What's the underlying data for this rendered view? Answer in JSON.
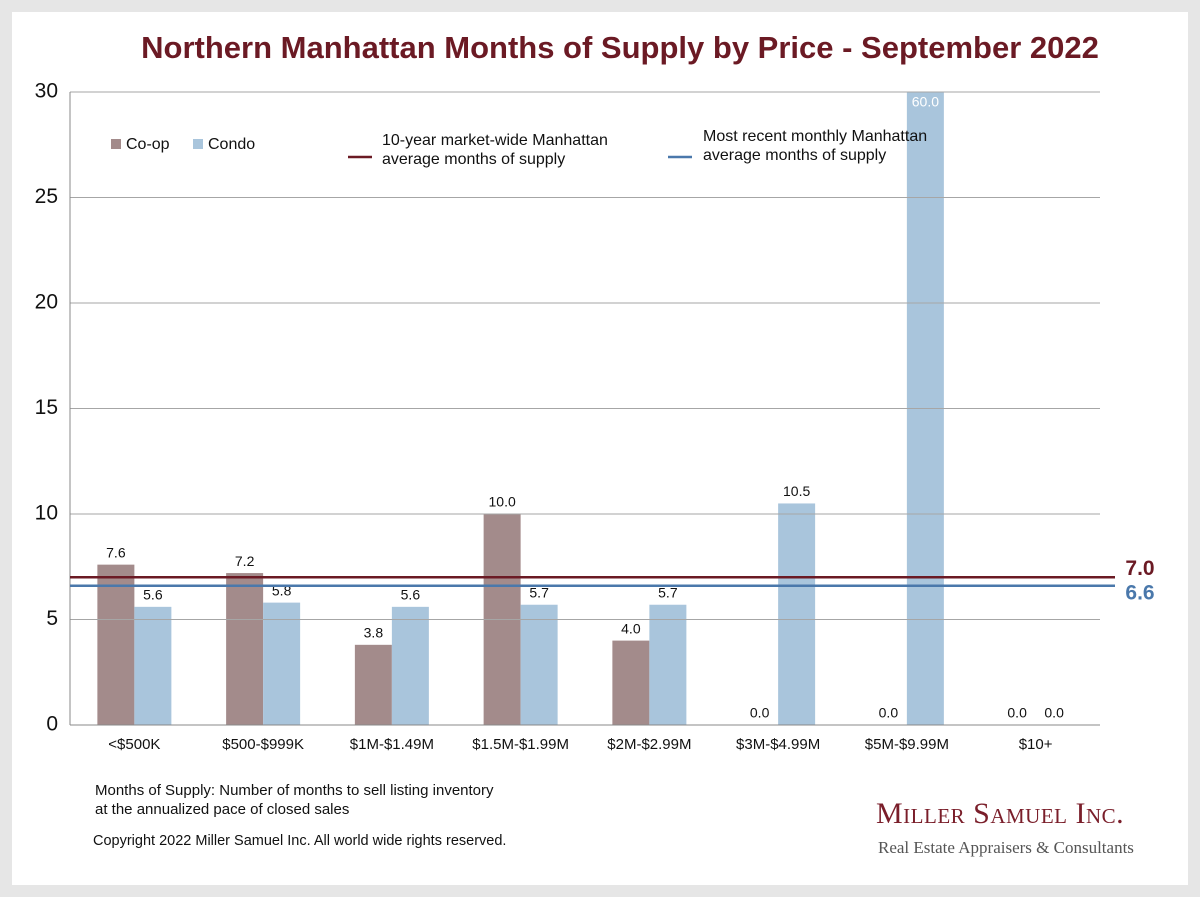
{
  "chart_data": {
    "type": "bar",
    "title": "Northern Manhattan Months of Supply by Price - September 2022",
    "categories": [
      "<$500K",
      "$500-$999K",
      "$1M-$1.49M",
      "$1.5M-$1.99M",
      "$2M-$2.99M",
      "$3M-$4.99M",
      "$5M-$9.99M",
      "$10+"
    ],
    "series": [
      {
        "name": "Co-op",
        "color": "#a38b8b",
        "values": [
          7.6,
          7.2,
          3.8,
          10.0,
          4.0,
          0.0,
          0.0,
          0.0
        ],
        "value_labels": [
          "7.6",
          "7.2",
          "3.8",
          "10.0",
          "4.0",
          "0.0",
          "0.0",
          "0.0"
        ]
      },
      {
        "name": "Condo",
        "color": "#a9c5dc",
        "values": [
          5.6,
          5.8,
          5.6,
          5.7,
          5.7,
          10.5,
          60.0,
          0.0
        ],
        "value_labels": [
          "5.6",
          "5.8",
          "5.6",
          "5.7",
          "5.7",
          "10.5",
          "60.0",
          "0.0"
        ]
      }
    ],
    "reference_lines": [
      {
        "name": "10-year market-wide Manhattan average months of supply",
        "value": 7.0,
        "value_label": "7.0",
        "color": "#6b1a24"
      },
      {
        "name": "Most recent monthly Manhattan average months of supply",
        "value": 6.6,
        "value_label": "6.6",
        "color": "#4a78ab"
      }
    ],
    "ylim": [
      0,
      30
    ],
    "yticks": [
      0,
      5,
      10,
      15,
      20,
      25,
      30
    ],
    "grid": true,
    "note": "Months of Supply: Number of months to sell listing inventory at the annualized pace of closed sales",
    "copyright": "Copyright 2022 Miller Samuel Inc.  All world wide rights reserved.",
    "logo_name": "Miller Samuel Inc.",
    "logo_tagline": "Real Estate Appraisers & Consultants"
  }
}
